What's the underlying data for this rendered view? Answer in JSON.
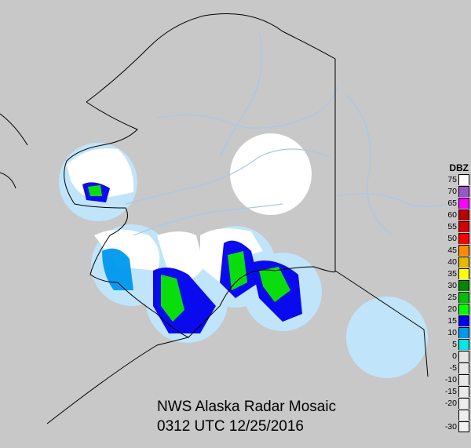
{
  "title": "NWS Alaska Radar Mosaic",
  "timestamp": "0312 UTC 12/25/2016",
  "legend": {
    "unit": "DBZ",
    "levels": [
      {
        "label": "75",
        "color": "#ffffff"
      },
      {
        "label": "70",
        "color": "#9955c9"
      },
      {
        "label": "65",
        "color": "#ff00ff"
      },
      {
        "label": "60",
        "color": "#bb0000"
      },
      {
        "label": "55",
        "color": "#d40000"
      },
      {
        "label": "50",
        "color": "#ff0000"
      },
      {
        "label": "45",
        "color": "#ff8c00"
      },
      {
        "label": "40",
        "color": "#e6b800"
      },
      {
        "label": "35",
        "color": "#ffff00"
      },
      {
        "label": "30",
        "color": "#008800"
      },
      {
        "label": "25",
        "color": "#00c000"
      },
      {
        "label": "20",
        "color": "#00ff00"
      },
      {
        "label": "15",
        "color": "#0000ee"
      },
      {
        "label": "10",
        "color": "#0099ee"
      },
      {
        "label": "5",
        "color": "#00e8e8"
      },
      {
        "label": "0",
        "color": "#e4e4e4"
      },
      {
        "label": "-5",
        "color": "#e6e6e6"
      },
      {
        "label": "-10",
        "color": "#e8e8e8"
      },
      {
        "label": "-15",
        "color": "#eaeaea"
      },
      {
        "label": "-20",
        "color": "#ececec"
      },
      {
        "label": "",
        "color": "#eeeeee"
      },
      {
        "label": "-30",
        "color": "#f0f0f0"
      }
    ]
  },
  "colors": {
    "background": "#c8c8c8",
    "radar_coverage_ocean": "#c0e4fa",
    "radar_coverage_land": "#ffffff",
    "rivers": "#a8c8ea",
    "coastline": "#000000"
  }
}
